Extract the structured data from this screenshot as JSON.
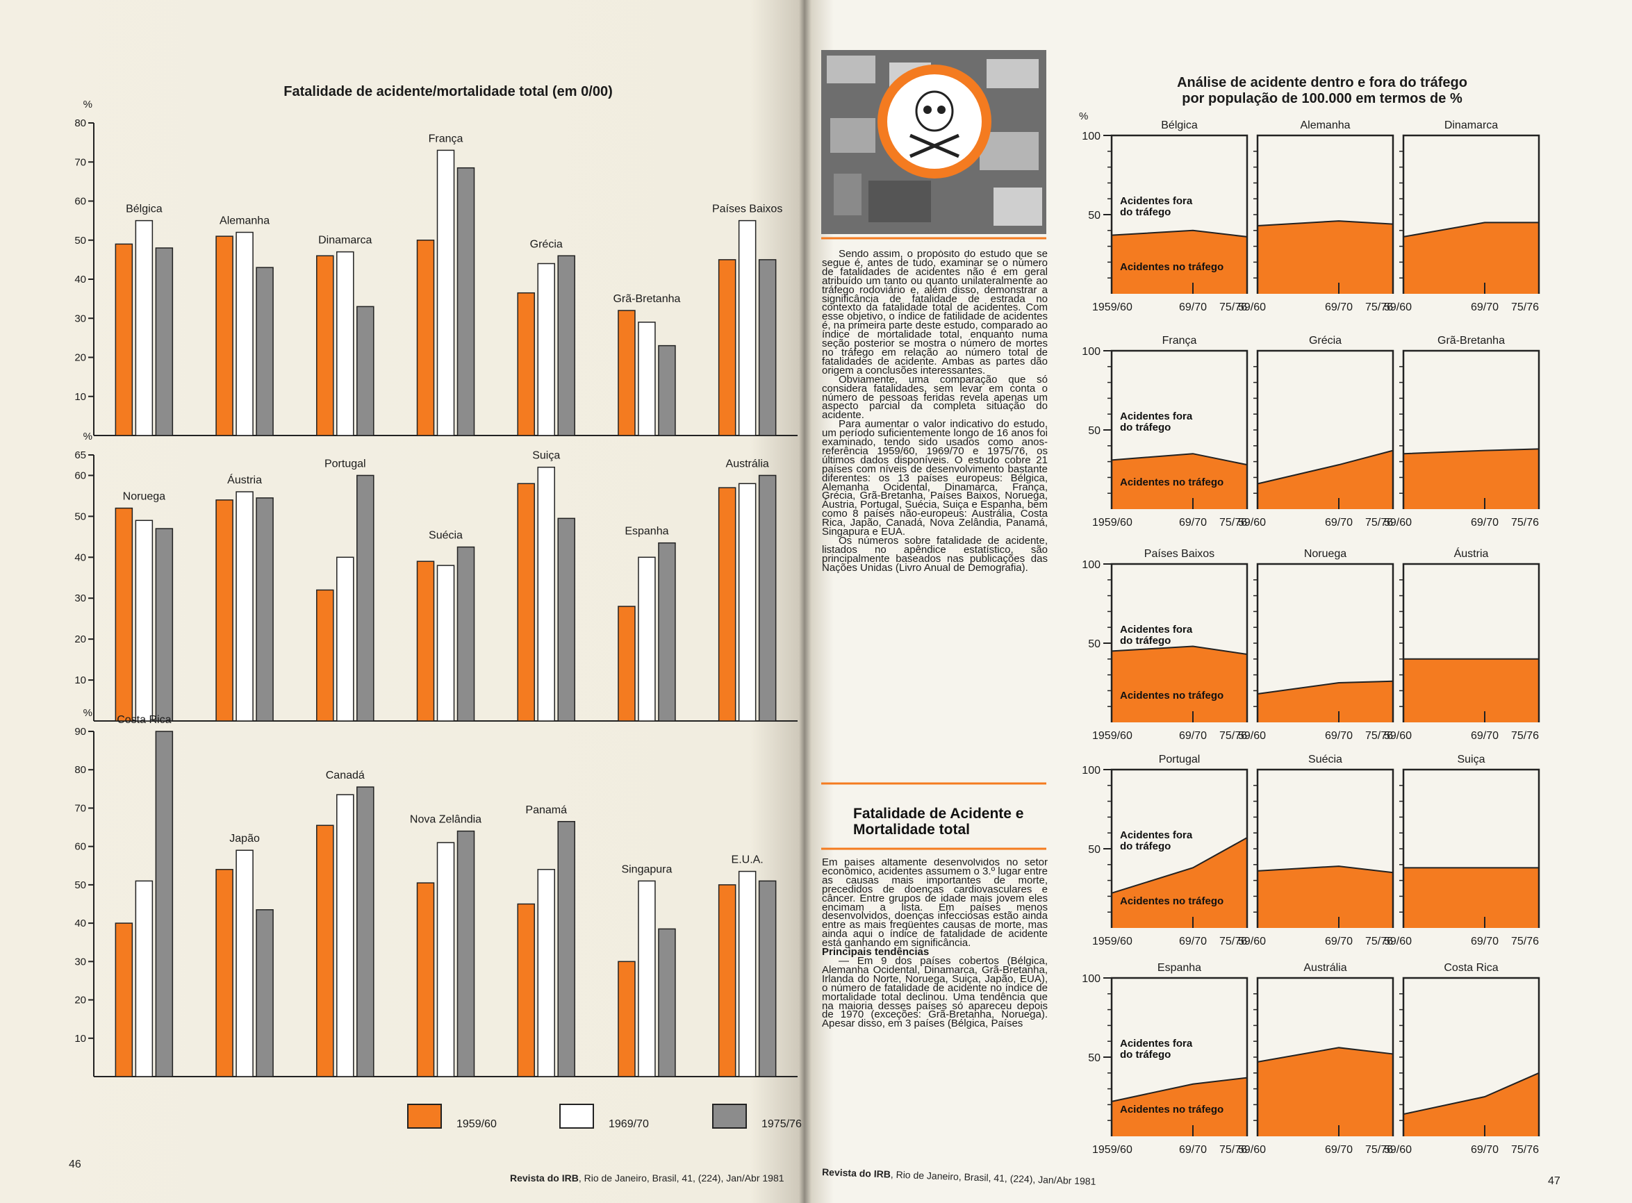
{
  "chart_data": [
    {
      "type": "bar",
      "title": "Fatalidade de acidente/mortalidade total (em 0/00)",
      "ylabel": "%",
      "ylim": [
        0,
        80
      ],
      "yticks": [
        10,
        20,
        30,
        40,
        50,
        60,
        70,
        80
      ],
      "categories": [
        "Bélgica",
        "Alemanha",
        "Dinamarca",
        "França",
        "Grécia",
        "Grã-Bretanha",
        "Países Baixos"
      ],
      "series": [
        {
          "color": "#f47b20",
          "values": [
            49,
            51,
            46,
            50,
            36.5,
            32,
            45
          ]
        },
        {
          "color": "#ffffff",
          "values": [
            55,
            52,
            47,
            73,
            44,
            29,
            55
          ]
        },
        {
          "color": "#8c8c8c",
          "values": [
            48,
            43,
            33,
            68.5,
            46,
            23,
            45
          ]
        }
      ]
    },
    {
      "type": "bar",
      "ylabel": "%",
      "ylim": [
        0,
        65
      ],
      "yticks": [
        10,
        20,
        30,
        40,
        50,
        60,
        65
      ],
      "categories": [
        "Noruega",
        "Áustria",
        "Portugal",
        "Suécia",
        "Suiça",
        "Espanha",
        "Austrália"
      ],
      "series": [
        {
          "color": "#f47b20",
          "values": [
            52,
            54,
            32,
            39,
            58,
            28,
            57
          ]
        },
        {
          "color": "#ffffff",
          "values": [
            49,
            56,
            40,
            38,
            62,
            40,
            58
          ]
        },
        {
          "color": "#8c8c8c",
          "values": [
            47,
            54.5,
            60,
            42.5,
            49.5,
            43.5,
            60
          ]
        }
      ]
    },
    {
      "type": "bar",
      "ylabel": "%",
      "ylim": [
        0,
        90
      ],
      "yticks": [
        10,
        20,
        30,
        40,
        50,
        60,
        70,
        80,
        90
      ],
      "categories": [
        "Costa Rica",
        "Japão",
        "Canadá",
        "Nova Zelândia",
        "Panamá",
        "Singapura",
        "E.U.A."
      ],
      "series": [
        {
          "name": "1959/60",
          "color": "#f47b20",
          "values": [
            40,
            54,
            65.5,
            50.5,
            45,
            30,
            50
          ]
        },
        {
          "name": "1969/70",
          "color": "#ffffff",
          "values": [
            51,
            59,
            73.5,
            61,
            54,
            51,
            53.5
          ]
        },
        {
          "name": "1975/76",
          "color": "#8c8c8c",
          "values": [
            90,
            43.5,
            75.5,
            64,
            66.5,
            38.5,
            51
          ]
        }
      ]
    },
    {
      "type": "area",
      "suptitle": [
        "Análise de acidente dentro e fora do tráfego",
        "por população de 100.000 em termos de %"
      ],
      "ylabel": "%",
      "title": "Bélgica",
      "x": [
        "1959/60",
        "69/70",
        "75/76"
      ],
      "values": [
        37,
        40,
        36
      ],
      "ylim": [
        0,
        100
      ],
      "yticks": [
        50,
        100
      ],
      "color": "#f47b20",
      "annotations": [
        "Acidentes fora do tráfego",
        "Acidentes no tráfego"
      ]
    },
    {
      "type": "area",
      "title": "Alemanha",
      "x": [
        "59/60",
        "69/70",
        "75/76"
      ],
      "values": [
        43,
        46,
        44
      ],
      "ylim": [
        0,
        100
      ],
      "color": "#f47b20"
    },
    {
      "type": "area",
      "title": "Dinamarca",
      "x": [
        "59/60",
        "69/70",
        "75/76"
      ],
      "values": [
        36,
        45,
        45
      ],
      "ylim": [
        0,
        100
      ],
      "color": "#f47b20"
    },
    {
      "type": "area",
      "title": "França",
      "x": [
        "1959/60",
        "69/70",
        "75/76"
      ],
      "values": [
        31,
        35,
        28
      ],
      "ylim": [
        0,
        100
      ],
      "yticks": [
        50,
        100
      ],
      "color": "#f47b20",
      "annotations": [
        "Acidentes fora do tráfego",
        "Acidentes no tráfego"
      ]
    },
    {
      "type": "area",
      "title": "Grécia",
      "x": [
        "59/60",
        "69/70",
        "75/76"
      ],
      "values": [
        16,
        28,
        37
      ],
      "ylim": [
        0,
        100
      ],
      "color": "#f47b20"
    },
    {
      "type": "area",
      "title": "Grã-Bretanha",
      "x": [
        "59/60",
        "69/70",
        "75/76"
      ],
      "values": [
        35,
        37,
        38
      ],
      "ylim": [
        0,
        100
      ],
      "color": "#f47b20"
    },
    {
      "type": "area",
      "title": "Países Baixos",
      "x": [
        "1959/60",
        "69/70",
        "75/76"
      ],
      "values": [
        45,
        48,
        43
      ],
      "ylim": [
        0,
        100
      ],
      "yticks": [
        50,
        100
      ],
      "color": "#f47b20",
      "annotations": [
        "Acidentes fora do tráfego",
        "Acidentes no tráfego"
      ]
    },
    {
      "type": "area",
      "title": "Noruega",
      "x": [
        "59/60",
        "69/70",
        "75/76"
      ],
      "values": [
        18,
        25,
        26
      ],
      "ylim": [
        0,
        100
      ],
      "color": "#f47b20"
    },
    {
      "type": "area",
      "title": "Áustria",
      "x": [
        "59/60",
        "69/70",
        "75/76"
      ],
      "values": [
        40,
        40,
        40
      ],
      "ylim": [
        0,
        100
      ],
      "color": "#f47b20"
    },
    {
      "type": "area",
      "title": "Portugal",
      "x": [
        "1959/60",
        "69/70",
        "75/76"
      ],
      "values": [
        22,
        38,
        57
      ],
      "ylim": [
        0,
        100
      ],
      "yticks": [
        50,
        100
      ],
      "color": "#f47b20",
      "annotations": [
        "Acidentes fora do tráfego",
        "Acidentes no tráfego"
      ]
    },
    {
      "type": "area",
      "title": "Suécia",
      "x": [
        "59/60",
        "69/70",
        "75/76"
      ],
      "values": [
        36,
        39,
        35
      ],
      "ylim": [
        0,
        100
      ],
      "color": "#f47b20"
    },
    {
      "type": "area",
      "title": "Suiça",
      "x": [
        "59/60",
        "69/70",
        "75/76"
      ],
      "values": [
        38,
        38,
        38
      ],
      "ylim": [
        0,
        100
      ],
      "color": "#f47b20"
    },
    {
      "type": "area",
      "title": "Espanha",
      "x": [
        "1959/60",
        "69/70",
        "75/76"
      ],
      "values": [
        22,
        33,
        37
      ],
      "ylim": [
        0,
        100
      ],
      "yticks": [
        50,
        100
      ],
      "color": "#f47b20",
      "annotations": [
        "Acidentes fora do tráfego",
        "Acidentes no tráfego"
      ]
    },
    {
      "type": "area",
      "title": "Austrália",
      "x": [
        "59/60",
        "69/70",
        "75/76"
      ],
      "values": [
        47,
        56,
        52
      ],
      "ylim": [
        0,
        100
      ],
      "color": "#f47b20"
    },
    {
      "type": "area",
      "title": "Costa Rica",
      "x": [
        "59/60",
        "69/70",
        "75/76"
      ],
      "values": [
        14,
        25,
        40
      ],
      "ylim": [
        0,
        100
      ],
      "color": "#f47b20"
    }
  ],
  "article": {
    "paragraphs": [
      "Sendo assim, o propósito do estudo que se segue é, antes de tudo, examinar se o número de fatalidades de acidentes não é em geral atribuído um tanto ou quanto unilateralmente ao tráfego rodoviário e, além disso, demonstrar a significância de fatalidade de estrada no contexto da fatalidade total de acidentes. Com esse objetivo, o índice de fatilidade de acidentes é, na primeira parte deste estudo, comparado ao índice de mortalidade total, enquanto numa seção posterior se mostra o número de mortes no tráfego em relação ao número total de fatalidades de acidente. Ambas as partes dão origem a conclusões interessantes.",
      "Obviamente, uma comparação que só considera fatalidades, sem levar em conta o número de pessoas feridas revela apenas um aspecto parcial da completa situação do acidente.",
      "Para aumentar o valor indicativo do estudo, um período suficientemente longo de 16 anos foi examinado, tendo sido usados como anos-referência 1959/60, 1969/70 e 1975/76, os últimos dados disponíveis. O estudo cobre 21 países com níveis de desenvolvimento bastante diferentes: os 13 países europeus: Bélgica, Alemanha Ocidental, Dinamarca, França, Grécia, Grã-Bretanha, Países Baixos, Noruega, Áustria, Portugal, Suécia, Suiça e Espanha, bem como 8 países não-europeus: Austrália, Costa Rica, Japão, Canadá, Nova Zelândia, Panamá, Singapura e EUA.",
      "Os números sobre fatalidade de acidente, listados no apêndice estatístico, são principalmente baseados nas publicações das Nações Unidas (Livro Anual de Demografia)."
    ],
    "heading": "Fatalidade de Acidente e Mortalidade total",
    "section_paragraph": "Em países altamente desenvolvidos no setor econômico, acidentes assumem o 3.º lugar entre as causas mais importantes de morte, precedidos de doenças cardiovasculares e câncer. Entre grupos de idade mais jovem eles encimam a lista. Em países menos desenvolvidos, doenças infecciosas estão ainda entre as mais freqüentes causas de morte, mas ainda aqui o índice de fatalidade de acidente está ganhando em significância.",
    "subheading": "Principais tendências",
    "trend_paragraph": "— Em 9 dos países cobertos (Bélgica, Alemanha Ocidental, Dinamarca, Grã-Bretanha, Irlanda do Norte, Noruega, Suiça, Japão, EUA), o número de fatalidade de acidente no índice de mortalidade total declinou. Uma tendência que na maioria desses países só apareceu depois de 1970 (exceções: Grã-Bretanha, Noruega). Apesar disso, em 3 países (Bélgica, Países"
  },
  "footer_left": {
    "page": "46",
    "journal": "Revista do IRB",
    "citation": ", Rio de Janeiro, Brasil, 41, (224), Jan/Abr 1981"
  },
  "footer_right": {
    "page": "47",
    "journal": "Revista do IRB",
    "citation": ", Rio de Janeiro, Brasil, 41, (224), Jan/Abr 1981"
  }
}
